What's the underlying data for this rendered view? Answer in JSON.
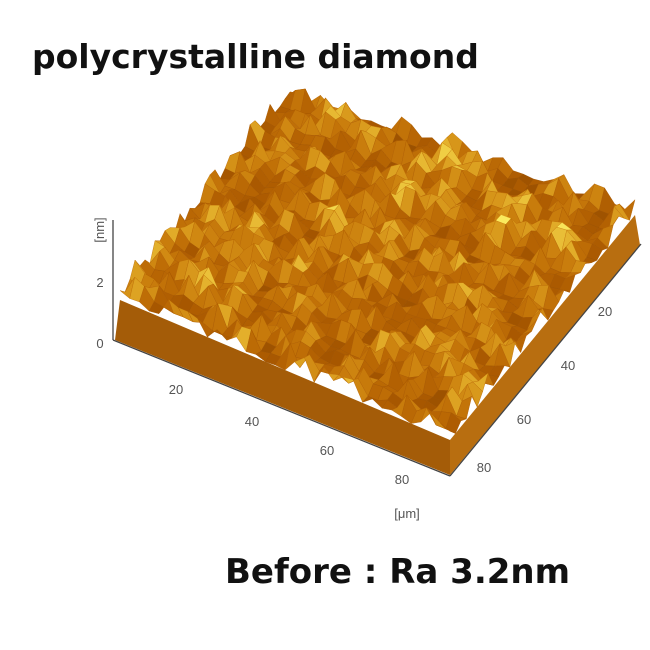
{
  "title": "polycrystalline diamond",
  "caption": "Before : Ra 3.2nm",
  "afm_image": {
    "z_axis": {
      "label": "[nm]",
      "ticks": [
        "0",
        "2"
      ]
    },
    "x_axis": {
      "label": "[μm]",
      "ticks": [
        "20",
        "40",
        "60",
        "80"
      ]
    },
    "y_axis": {
      "ticks": [
        "20",
        "40",
        "60",
        "80"
      ]
    }
  }
}
